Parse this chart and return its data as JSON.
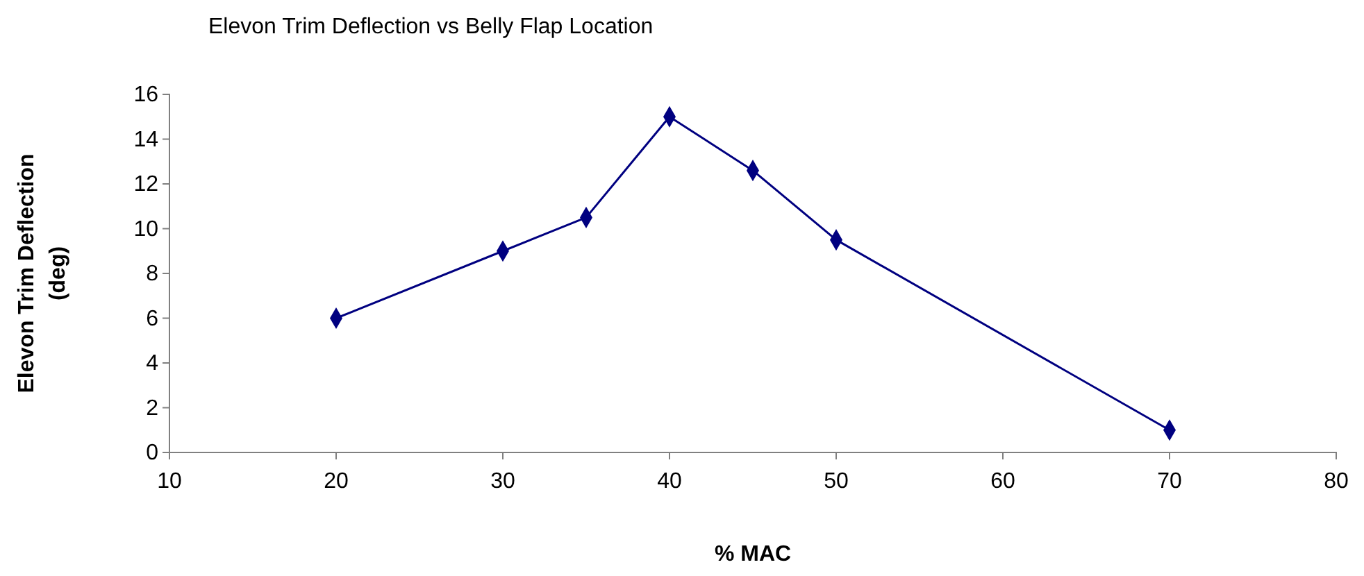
{
  "chart_data": {
    "type": "line",
    "title": "Elevon Trim Deflection vs Belly Flap Location",
    "xlabel": "% MAC",
    "ylabel": "Elevon Trim Deflection\n(deg)",
    "x": [
      20,
      30,
      35,
      40,
      45,
      50,
      70
    ],
    "series": [
      {
        "color": "#000080",
        "values": [
          6,
          9,
          10.5,
          15,
          12.6,
          9.5,
          1
        ]
      }
    ],
    "xlim": [
      10,
      80
    ],
    "xticks": [
      10,
      20,
      30,
      40,
      50,
      60,
      70,
      80
    ],
    "ylim": [
      0,
      16
    ],
    "yticks": [
      0,
      2,
      4,
      6,
      8,
      10,
      12,
      14,
      16
    ],
    "marker": "diamond",
    "line_style": "solid"
  }
}
